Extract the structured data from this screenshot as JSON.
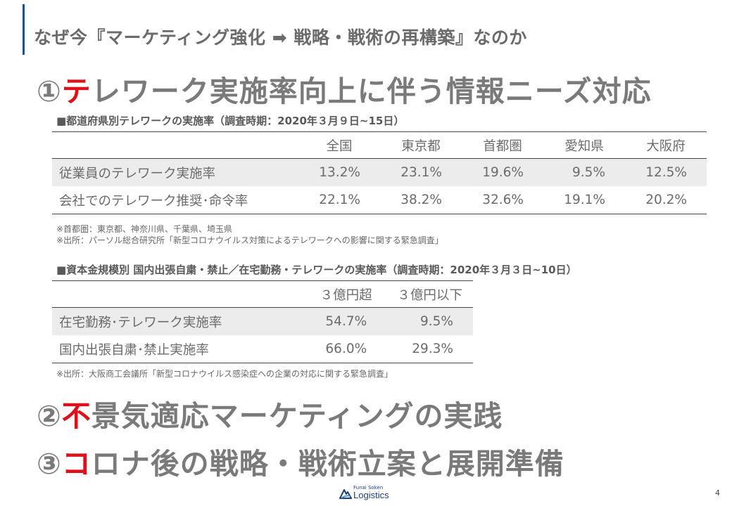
{
  "header": {
    "title": "なぜ今『マーケティング強化 ➡ 戦略・戦術の再構築』なのか"
  },
  "heading1": {
    "num": "①",
    "accent": "テ",
    "rest": "レワーク実施率向上に伴う情報ニーズ対応"
  },
  "table1": {
    "caption": "■都道府県別テレワークの実施率（調査時期：2020年３月９日~15日）",
    "columns": [
      "",
      "全国",
      "東京都",
      "首都圏",
      "愛知県",
      "大阪府"
    ],
    "rows": [
      {
        "label": "従業員のテレワーク実施率",
        "values": [
          "13.2%",
          "23.1%",
          "19.6%",
          "9.5%",
          "12.5%"
        ]
      },
      {
        "label": "会社でのテレワーク推奨･命令率",
        "values": [
          "22.1%",
          "38.2%",
          "32.6%",
          "19.1%",
          "20.2%"
        ]
      }
    ],
    "note1": "※首都圏：東京都、神奈川県、千葉県、埼玉県",
    "note2": "※出所：パーソル総合研究所「新型コロナウイルス対策によるテレワークへの影響に関する緊急調査」"
  },
  "table2": {
    "caption": "■資本金規模別 国内出張自粛・禁止／在宅勤務・テレワークの実施率（調査時期：2020年３月３日~10日）",
    "columns": [
      "",
      "３億円超",
      "３億円以下"
    ],
    "rows": [
      {
        "label": "在宅勤務･テレワーク実施率",
        "values": [
          "54.7%",
          "9.5%"
        ]
      },
      {
        "label": "国内出張自粛･禁止実施率",
        "values": [
          "66.0%",
          "29.3%"
        ]
      }
    ],
    "note": "※出所：大阪商工会議所「新型コロナウイルス感染症への企業の対応に関する緊急調査」"
  },
  "heading2": {
    "num": "②",
    "accent": "不",
    "rest": "景気適応マーケティングの実践"
  },
  "heading3": {
    "num": "③",
    "accent": "コ",
    "rest": "ロナ後の戦略・戦術立案と展開準備"
  },
  "footer": {
    "logo_small": "Funai Soken",
    "logo_main": "Logistics",
    "logo_icon": "funai-wave-logo",
    "page_number": "4"
  },
  "colors": {
    "accent_red": "#e0101a",
    "brand_blue": "#1f4e9a",
    "heading_gray": "#7a7a7a"
  }
}
